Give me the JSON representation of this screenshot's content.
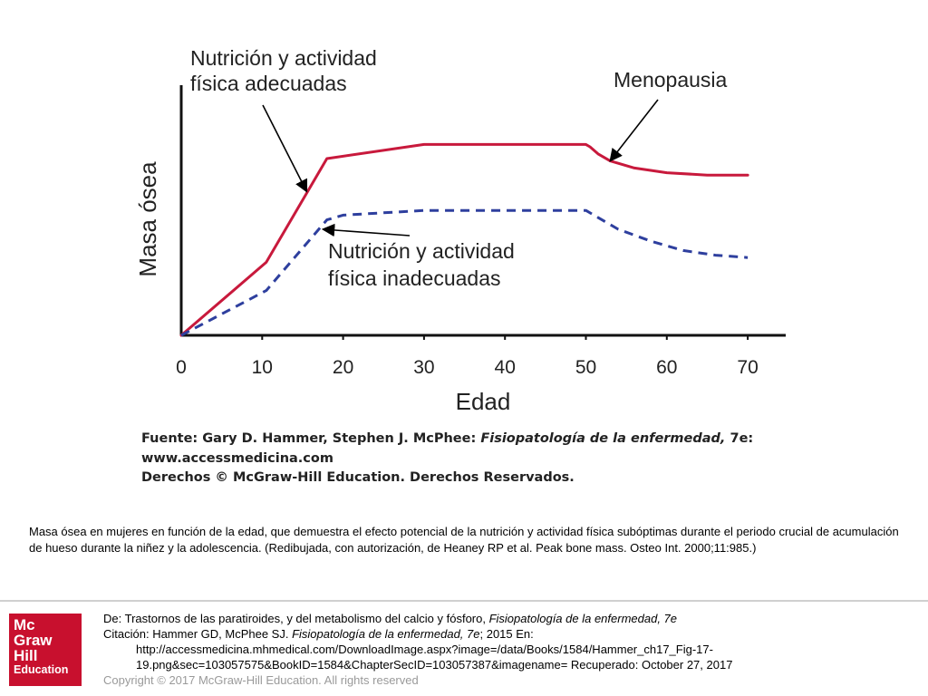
{
  "chart_data": {
    "type": "line",
    "xlabel": "Edad",
    "ylabel": "Masa ósea",
    "xlim": [
      0,
      70
    ],
    "xticks": [
      0,
      10,
      20,
      30,
      40,
      50,
      60,
      70
    ],
    "ylim": [
      0,
      100
    ],
    "grid": false,
    "series": [
      {
        "name": "Nutrición y actividad física adecuadas",
        "color": "#c8193c",
        "style": "solid",
        "x": [
          0,
          10.5,
          18,
          30,
          50,
          50.5,
          51.5,
          53,
          56,
          60,
          65,
          70
        ],
        "y": [
          0,
          31,
          75,
          81,
          81,
          80,
          77,
          74,
          71,
          69,
          68,
          68
        ]
      },
      {
        "name": "Nutrición y actividad física inadecuadas",
        "color": "#2e3f9e",
        "style": "dashed",
        "x": [
          0,
          10.5,
          18,
          20,
          30,
          50,
          54,
          58,
          62,
          66,
          70
        ],
        "y": [
          0,
          19,
          49,
          51,
          53,
          53,
          45,
          40,
          36,
          34,
          33
        ]
      }
    ],
    "annotations": [
      {
        "text_lines": [
          "Nutrición y actividad",
          "física adecuadas"
        ],
        "target": {
          "x": 15.5,
          "y": 61
        }
      },
      {
        "text_lines": [
          "Menopausia"
        ],
        "target": {
          "x": 53,
          "y": 74
        }
      },
      {
        "text_lines": [
          "Nutrición y actividad",
          "física inadecuadas"
        ],
        "target": {
          "x": 17.5,
          "y": 45
        }
      }
    ]
  },
  "source": {
    "line1_prefix": "Fuente: Gary D. Hammer, Stephen J. McPhee: ",
    "line1_title": "Fisiopatología de la enfermedad,",
    "line1_suffix": " 7e:",
    "line2": "www.accessmedicina.com",
    "line3": "Derechos © McGraw-Hill Education. Derechos Reservados."
  },
  "caption": "Masa ósea en mujeres en función de la edad, que demuestra el efecto potencial de la nutrición y actividad física subóptimas durante el periodo crucial de acumulación de hueso durante la niñez y la adolescencia. (Redibujada, con autorización, de Heaney RP et al. Peak bone mass. Osteo Int. 2000;11:985.)",
  "logo": {
    "line1": "Mc",
    "line2": "Graw",
    "line3": "Hill",
    "line4": "Education",
    "color": "#c8102e"
  },
  "refs": {
    "de_prefix": "De: Trastornos de las paratiroides, y del metabolismo del calcio y fósforo, ",
    "de_title": "Fisiopatología de la enfermedad, 7e",
    "citation_prefix": "Citación: Hammer GD, McPhee SJ. ",
    "citation_title": "Fisiopatología de la enfermedad, 7e",
    "citation_suffix": "; 2015 En:",
    "url_line1": "http://accessmedicina.mhmedical.com/DownloadImage.aspx?image=/data/Books/1584/Hammer_ch17_Fig-17-",
    "url_line2": "19.png&sec=103057575&BookID=1584&ChapterSecID=103057387&imagename= Recuperado: October 27, 2017",
    "copyright": "Copyright © 2017 McGraw-Hill Education. All rights reserved"
  }
}
